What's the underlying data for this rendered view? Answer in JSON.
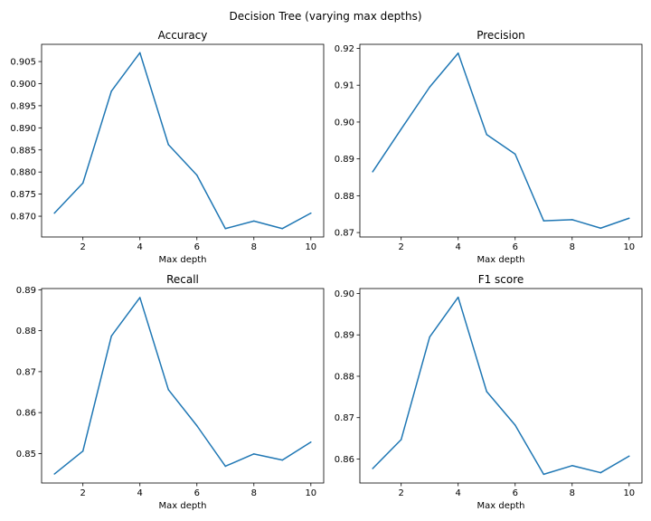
{
  "figure": {
    "suptitle": "Decision Tree (varying max depths)"
  },
  "line_color": "#1f77b4",
  "chart_data": [
    {
      "type": "line",
      "title": "Accuracy",
      "xlabel": "Max depth",
      "ylabel": "",
      "x": [
        1,
        2,
        3,
        4,
        5,
        6,
        7,
        8,
        9,
        10
      ],
      "values": [
        0.8707,
        0.8775,
        0.8983,
        0.907,
        0.8862,
        0.8793,
        0.8672,
        0.8689,
        0.8672,
        0.8707
      ],
      "xlim": [
        0.55,
        10.45
      ],
      "ylim": [
        0.8653,
        0.9089
      ],
      "xticks": [
        2,
        4,
        6,
        8,
        10
      ],
      "yticks": [
        0.87,
        0.875,
        0.88,
        0.885,
        0.89,
        0.895,
        0.9,
        0.905
      ],
      "ytick_labels": [
        "0.870",
        "0.875",
        "0.880",
        "0.885",
        "0.890",
        "0.895",
        "0.900",
        "0.905"
      ],
      "grid": false
    },
    {
      "type": "line",
      "title": "Precision",
      "xlabel": "Max depth",
      "ylabel": "",
      "x": [
        1,
        2,
        3,
        4,
        5,
        6,
        7,
        8,
        9,
        10
      ],
      "values": [
        0.8865,
        0.8981,
        0.9095,
        0.9187,
        0.8966,
        0.8913,
        0.8732,
        0.8735,
        0.8712,
        0.8739
      ],
      "xlim": [
        0.55,
        10.45
      ],
      "ylim": [
        0.8688,
        0.9211
      ],
      "xticks": [
        2,
        4,
        6,
        8,
        10
      ],
      "yticks": [
        0.87,
        0.88,
        0.89,
        0.9,
        0.91,
        0.92
      ],
      "ytick_labels": [
        "0.87",
        "0.88",
        "0.89",
        "0.90",
        "0.91",
        "0.92"
      ],
      "grid": false
    },
    {
      "type": "line",
      "title": "Recall",
      "xlabel": "Max depth",
      "ylabel": "",
      "x": [
        1,
        2,
        3,
        4,
        5,
        6,
        7,
        8,
        9,
        10
      ],
      "values": [
        0.845,
        0.8506,
        0.8787,
        0.8881,
        0.8656,
        0.8568,
        0.8469,
        0.8499,
        0.8484,
        0.8528
      ],
      "xlim": [
        0.55,
        10.45
      ],
      "ylim": [
        0.8428,
        0.8903
      ],
      "xticks": [
        2,
        4,
        6,
        8,
        10
      ],
      "yticks": [
        0.85,
        0.86,
        0.87,
        0.88,
        0.89
      ],
      "ytick_labels": [
        "0.85",
        "0.86",
        "0.87",
        "0.88",
        "0.89"
      ],
      "grid": false
    },
    {
      "type": "line",
      "title": "F1 score",
      "xlabel": "Max depth",
      "ylabel": "",
      "x": [
        1,
        2,
        3,
        4,
        5,
        6,
        7,
        8,
        9,
        10
      ],
      "values": [
        0.8577,
        0.8647,
        0.8895,
        0.8991,
        0.8763,
        0.8682,
        0.8563,
        0.8584,
        0.8567,
        0.8607
      ],
      "xlim": [
        0.55,
        10.45
      ],
      "ylim": [
        0.8542,
        0.9012
      ],
      "xticks": [
        2,
        4,
        6,
        8,
        10
      ],
      "yticks": [
        0.86,
        0.87,
        0.88,
        0.89,
        0.9
      ],
      "ytick_labels": [
        "0.86",
        "0.87",
        "0.88",
        "0.89",
        "0.90"
      ],
      "grid": false
    }
  ]
}
